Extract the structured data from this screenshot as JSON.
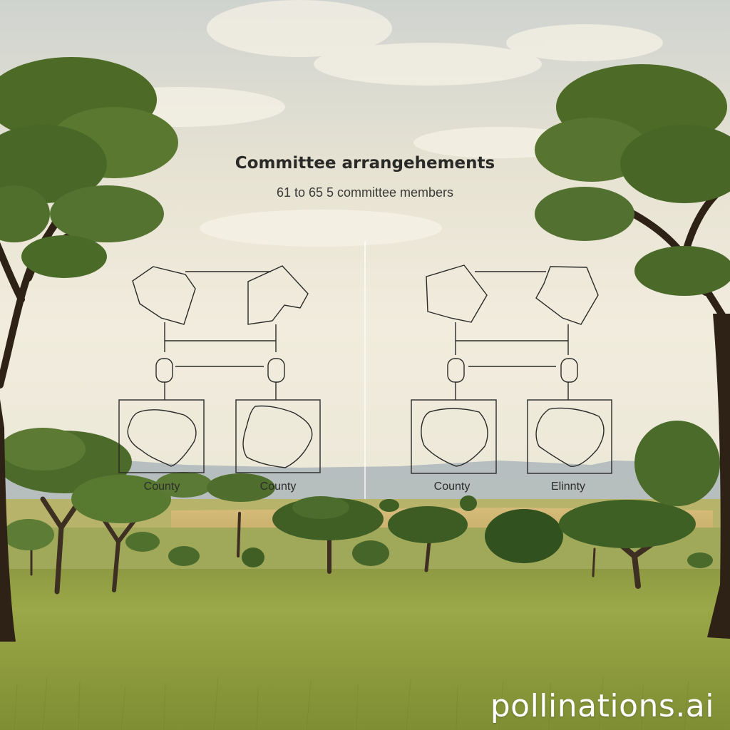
{
  "diagram": {
    "title": "Committee arrangehements",
    "subtitle": "61 to 65 5 committee members",
    "labels": [
      "County",
      "County",
      "County",
      "Elinnty"
    ]
  },
  "watermark": "pollinations.ai"
}
